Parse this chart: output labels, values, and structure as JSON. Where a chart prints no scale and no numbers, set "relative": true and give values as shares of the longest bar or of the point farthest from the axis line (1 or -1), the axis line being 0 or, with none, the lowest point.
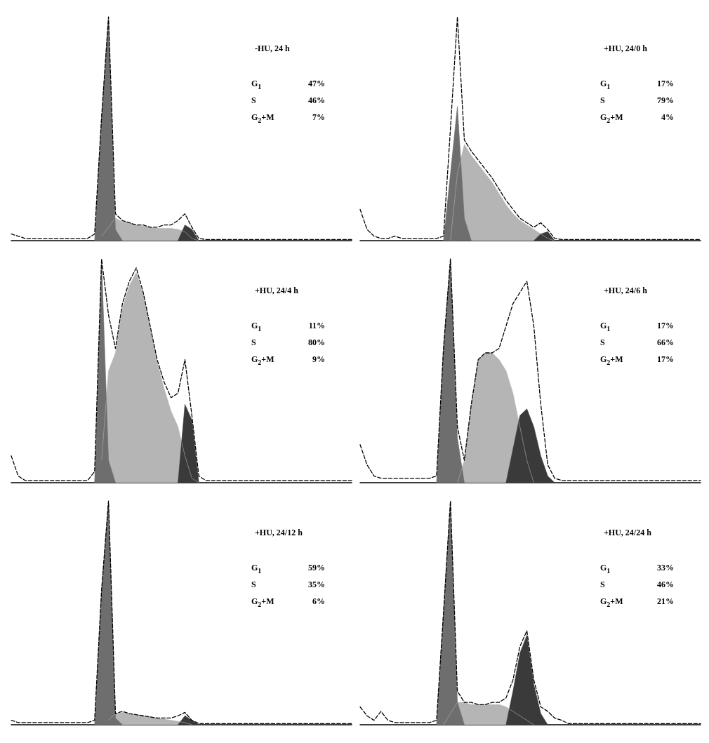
{
  "chart_data": [
    {
      "type": "area",
      "relative": true,
      "marker": "none",
      "line_style": "dashed",
      "title": "-HU, 24 h",
      "annotations": [
        "G$_{1}$",
        "47%",
        "S",
        "46%",
        "G$_{2}$+M",
        "7%"
      ],
      "categories": [
        null,
        null,
        null,
        null,
        null,
        null,
        null,
        null,
        null,
        null,
        null,
        null,
        null,
        null,
        null,
        null,
        null,
        null,
        null,
        null,
        null,
        null,
        null,
        null,
        null,
        null,
        null,
        null,
        null,
        null,
        null,
        null,
        null,
        null,
        null,
        null,
        null,
        null,
        null,
        null,
        null,
        null,
        null,
        null,
        null,
        null,
        null,
        null,
        null,
        null
      ],
      "series": [
        {
          "type": "area",
          "color": "#b5b5b5",
          "values": [
            null,
            null,
            null,
            null,
            null,
            null,
            null,
            null,
            null,
            null,
            null,
            null,
            null,
            0.02,
            0.06,
            0.1,
            0.085,
            0.08,
            0.07,
            0.065,
            0.06,
            0.055,
            0.055,
            0.055,
            0.05,
            0.04,
            0.01,
            0,
            null,
            null,
            null,
            null,
            null,
            null,
            null,
            null,
            null,
            null,
            null,
            null,
            null,
            null,
            null,
            null,
            null,
            null,
            null,
            null,
            null,
            null
          ]
        },
        {
          "type": "area",
          "color": "#6e6e6e",
          "values": [
            null,
            null,
            null,
            null,
            null,
            null,
            null,
            null,
            null,
            null,
            null,
            null,
            0,
            0.55,
            1.0,
            0.05,
            0,
            null,
            null,
            null,
            null,
            null,
            null,
            null,
            null,
            null,
            null,
            null,
            null,
            null,
            null,
            null,
            null,
            null,
            null,
            null,
            null,
            null,
            null,
            null,
            null,
            null,
            null,
            null,
            null,
            null,
            null,
            null,
            null,
            null
          ]
        },
        {
          "type": "area",
          "color": "#3a3a3a",
          "values": [
            null,
            null,
            null,
            null,
            null,
            null,
            null,
            null,
            null,
            null,
            null,
            null,
            null,
            null,
            null,
            null,
            null,
            null,
            null,
            null,
            null,
            null,
            null,
            null,
            0,
            0.07,
            0.05,
            0,
            null,
            null,
            null,
            null,
            null,
            null,
            null,
            null,
            null,
            null,
            null,
            null,
            null,
            null,
            null,
            null,
            null,
            null,
            null,
            null,
            null,
            null
          ]
        },
        {
          "type": "line",
          "color": "#000000",
          "values": [
            0.03,
            0.02,
            0.01,
            0.01,
            0.01,
            0.01,
            0.01,
            0.01,
            0.01,
            0.01,
            0.01,
            0.01,
            0.03,
            0.55,
            1.0,
            0.12,
            0.09,
            0.08,
            0.07,
            0.07,
            0.06,
            0.06,
            0.07,
            0.07,
            0.09,
            0.12,
            0.06,
            0.01,
            0.005,
            0.005,
            0.005,
            0.005,
            0.005,
            0.005,
            0.005,
            0.005,
            0.005,
            0.005,
            0.005,
            0.005,
            0.005,
            0.005,
            0.005,
            0.005,
            0.005,
            0.005,
            0.005,
            0.005,
            0.005,
            0.005
          ]
        }
      ]
    },
    {
      "type": "area",
      "relative": true,
      "marker": "none",
      "line_style": "dashed",
      "title": "+HU, 24/0 h",
      "annotations": [
        "G$_{1}$",
        "17%",
        "S",
        "79%",
        "G$_{2}$+M",
        "4%"
      ],
      "categories": [
        null,
        null,
        null,
        null,
        null,
        null,
        null,
        null,
        null,
        null,
        null,
        null,
        null,
        null,
        null,
        null,
        null,
        null,
        null,
        null,
        null,
        null,
        null,
        null,
        null,
        null,
        null,
        null,
        null,
        null,
        null,
        null,
        null,
        null,
        null,
        null,
        null,
        null,
        null,
        null,
        null,
        null,
        null,
        null,
        null,
        null,
        null,
        null,
        null,
        null
      ],
      "series": [
        {
          "type": "area",
          "color": "#b5b5b5",
          "values": [
            null,
            null,
            null,
            null,
            null,
            null,
            null,
            null,
            null,
            null,
            null,
            null,
            null,
            0,
            0.3,
            0.43,
            0.38,
            0.34,
            0.3,
            0.26,
            0.21,
            0.16,
            0.12,
            0.09,
            0.07,
            0.05,
            0.03,
            0.01,
            0,
            null,
            null,
            null,
            null,
            null,
            null,
            null,
            null,
            null,
            null,
            null,
            null,
            null,
            null,
            null,
            null,
            null,
            null,
            null,
            null,
            null
          ]
        },
        {
          "type": "area",
          "color": "#6e6e6e",
          "values": [
            null,
            null,
            null,
            null,
            null,
            null,
            null,
            null,
            null,
            null,
            null,
            null,
            0,
            0.3,
            0.6,
            0.1,
            0,
            null,
            null,
            null,
            null,
            null,
            null,
            null,
            null,
            null,
            null,
            null,
            null,
            null,
            null,
            null,
            null,
            null,
            null,
            null,
            null,
            null,
            null,
            null,
            null,
            null,
            null,
            null,
            null,
            null,
            null,
            null,
            null,
            null
          ]
        },
        {
          "type": "area",
          "color": "#3a3a3a",
          "values": [
            null,
            null,
            null,
            null,
            null,
            null,
            null,
            null,
            null,
            null,
            null,
            null,
            null,
            null,
            null,
            null,
            null,
            null,
            null,
            null,
            null,
            null,
            null,
            null,
            null,
            0,
            0.03,
            0.04,
            0,
            null,
            null,
            null,
            null,
            null,
            null,
            null,
            null,
            null,
            null,
            null,
            null,
            null,
            null,
            null,
            null,
            null,
            null,
            null,
            null,
            null
          ]
        },
        {
          "type": "line",
          "color": "#000000",
          "values": [
            0.14,
            0.05,
            0.02,
            0.01,
            0.01,
            0.02,
            0.01,
            0.01,
            0.01,
            0.01,
            0.01,
            0.01,
            0.02,
            0.5,
            1.0,
            0.45,
            0.4,
            0.36,
            0.32,
            0.28,
            0.23,
            0.18,
            0.14,
            0.1,
            0.08,
            0.06,
            0.08,
            0.05,
            0.01,
            0.005,
            0.005,
            0.005,
            0.005,
            0.005,
            0.005,
            0.005,
            0.005,
            0.005,
            0.005,
            0.005,
            0.005,
            0.005,
            0.005,
            0.005,
            0.005,
            0.005,
            0.005,
            0.005,
            0.005,
            0.005
          ]
        }
      ]
    },
    {
      "type": "area",
      "relative": true,
      "marker": "none",
      "line_style": "dashed",
      "title": "+HU, 24/4 h",
      "annotations": [
        "G$_{1}$",
        "11%",
        "S",
        "80%",
        "G$_{2}$+M",
        "9%"
      ],
      "categories": [
        null,
        null,
        null,
        null,
        null,
        null,
        null,
        null,
        null,
        null,
        null,
        null,
        null,
        null,
        null,
        null,
        null,
        null,
        null,
        null,
        null,
        null,
        null,
        null,
        null,
        null,
        null,
        null,
        null,
        null,
        null,
        null,
        null,
        null,
        null,
        null,
        null,
        null,
        null,
        null,
        null,
        null,
        null,
        null,
        null,
        null,
        null,
        null,
        null,
        null
      ],
      "series": [
        {
          "type": "area",
          "color": "#b5b5b5",
          "values": [
            null,
            null,
            null,
            null,
            null,
            null,
            null,
            null,
            null,
            null,
            null,
            null,
            null,
            0.1,
            0.5,
            0.58,
            0.78,
            0.88,
            0.94,
            0.84,
            0.69,
            0.54,
            0.42,
            0.32,
            0.25,
            0.12,
            0.02,
            0,
            null,
            null,
            null,
            null,
            null,
            null,
            null,
            null,
            null,
            null,
            null,
            null,
            null,
            null,
            null,
            null,
            null,
            null,
            null,
            null,
            null,
            null
          ]
        },
        {
          "type": "area",
          "color": "#6e6e6e",
          "values": [
            null,
            null,
            null,
            null,
            null,
            null,
            null,
            null,
            null,
            null,
            null,
            null,
            0,
            1.0,
            0.1,
            0,
            null,
            null,
            null,
            null,
            null,
            null,
            null,
            null,
            null,
            null,
            null,
            null,
            null,
            null,
            null,
            null,
            null,
            null,
            null,
            null,
            null,
            null,
            null,
            null,
            null,
            null,
            null,
            null,
            null,
            null,
            null,
            null,
            null,
            null
          ]
        },
        {
          "type": "area",
          "color": "#3a3a3a",
          "values": [
            null,
            null,
            null,
            null,
            null,
            null,
            null,
            null,
            null,
            null,
            null,
            null,
            null,
            null,
            null,
            null,
            null,
            null,
            null,
            null,
            null,
            null,
            null,
            null,
            0,
            0.35,
            0.28,
            0,
            null,
            null,
            null,
            null,
            null,
            null,
            null,
            null,
            null,
            null,
            null,
            null,
            null,
            null,
            null,
            null,
            null,
            null,
            null,
            null,
            null,
            null
          ]
        },
        {
          "type": "line",
          "color": "#000000",
          "values": [
            0.12,
            0.03,
            0.01,
            0.01,
            0.01,
            0.01,
            0.01,
            0.01,
            0.01,
            0.01,
            0.01,
            0.01,
            0.05,
            1.0,
            0.75,
            0.6,
            0.8,
            0.9,
            0.96,
            0.85,
            0.7,
            0.55,
            0.45,
            0.38,
            0.4,
            0.55,
            0.3,
            0.03,
            0.01,
            0.01,
            0.01,
            0.01,
            0.01,
            0.01,
            0.01,
            0.01,
            0.01,
            0.01,
            0.01,
            0.01,
            0.01,
            0.01,
            0.01,
            0.01,
            0.01,
            0.01,
            0.01,
            0.01,
            0.01,
            0.01
          ]
        }
      ]
    },
    {
      "type": "area",
      "relative": true,
      "marker": "none",
      "line_style": "dashed",
      "title": "+HU, 24/6 h",
      "annotations": [
        "G$_{1}$",
        "17%",
        "S",
        "66%",
        "G$_{2}$+M",
        "17%"
      ],
      "categories": [
        null,
        null,
        null,
        null,
        null,
        null,
        null,
        null,
        null,
        null,
        null,
        null,
        null,
        null,
        null,
        null,
        null,
        null,
        null,
        null,
        null,
        null,
        null,
        null,
        null,
        null,
        null,
        null,
        null,
        null,
        null,
        null,
        null,
        null,
        null,
        null,
        null,
        null,
        null,
        null,
        null,
        null,
        null,
        null,
        null,
        null,
        null,
        null,
        null,
        null
      ],
      "series": [
        {
          "type": "area",
          "color": "#b5b5b5",
          "values": [
            null,
            null,
            null,
            null,
            null,
            null,
            null,
            null,
            null,
            null,
            null,
            null,
            null,
            null,
            0,
            0.1,
            0.35,
            0.55,
            0.58,
            0.58,
            0.55,
            0.5,
            0.4,
            0.25,
            0.1,
            0,
            null,
            null,
            null,
            null,
            null,
            null,
            null,
            null,
            null,
            null,
            null,
            null,
            null,
            null,
            null,
            null,
            null,
            null,
            null,
            null,
            null,
            null,
            null,
            null
          ]
        },
        {
          "type": "area",
          "color": "#6e6e6e",
          "values": [
            null,
            null,
            null,
            null,
            null,
            null,
            null,
            null,
            null,
            null,
            null,
            0,
            0.6,
            1.0,
            0.2,
            0,
            null,
            null,
            null,
            null,
            null,
            null,
            null,
            null,
            null,
            null,
            null,
            null,
            null,
            null,
            null,
            null,
            null,
            null,
            null,
            null,
            null,
            null,
            null,
            null,
            null,
            null,
            null,
            null,
            null,
            null,
            null,
            null,
            null,
            null
          ]
        },
        {
          "type": "area",
          "color": "#3a3a3a",
          "values": [
            null,
            null,
            null,
            null,
            null,
            null,
            null,
            null,
            null,
            null,
            null,
            null,
            null,
            null,
            null,
            null,
            null,
            null,
            null,
            null,
            null,
            0,
            0.15,
            0.3,
            0.33,
            0.25,
            0.12,
            0.03,
            0,
            null,
            null,
            null,
            null,
            null,
            null,
            null,
            null,
            null,
            null,
            null,
            null,
            null,
            null,
            null,
            null,
            null,
            null,
            null,
            null,
            null
          ]
        },
        {
          "type": "line",
          "color": "#000000",
          "values": [
            0.17,
            0.08,
            0.03,
            0.02,
            0.02,
            0.02,
            0.02,
            0.02,
            0.02,
            0.02,
            0.02,
            0.03,
            0.6,
            1.0,
            0.25,
            0.1,
            0.35,
            0.55,
            0.58,
            0.58,
            0.6,
            0.7,
            0.8,
            0.85,
            0.9,
            0.7,
            0.35,
            0.08,
            0.02,
            0.01,
            0.01,
            0.01,
            0.01,
            0.01,
            0.01,
            0.01,
            0.01,
            0.01,
            0.01,
            0.01,
            0.01,
            0.01,
            0.01,
            0.01,
            0.01,
            0.01,
            0.01,
            0.01,
            0.01,
            0.01
          ]
        }
      ]
    },
    {
      "type": "area",
      "relative": true,
      "marker": "none",
      "line_style": "dashed",
      "title": "+HU, 24/12 h",
      "annotations": [
        "G$_{1}$",
        "59%",
        "S",
        "35%",
        "G$_{2}$+M",
        "6%"
      ],
      "categories": [
        null,
        null,
        null,
        null,
        null,
        null,
        null,
        null,
        null,
        null,
        null,
        null,
        null,
        null,
        null,
        null,
        null,
        null,
        null,
        null,
        null,
        null,
        null,
        null,
        null,
        null,
        null,
        null,
        null,
        null,
        null,
        null,
        null,
        null,
        null,
        null,
        null,
        null,
        null,
        null,
        null,
        null,
        null,
        null,
        null,
        null,
        null,
        null,
        null,
        null
      ],
      "series": [
        {
          "type": "area",
          "color": "#b5b5b5",
          "values": [
            null,
            null,
            null,
            null,
            null,
            null,
            null,
            null,
            null,
            null,
            null,
            null,
            null,
            null,
            0.02,
            0.05,
            0.055,
            0.05,
            0.045,
            0.04,
            0.035,
            0.03,
            0.025,
            0.02,
            0.015,
            0.01,
            0,
            null,
            null,
            null,
            null,
            null,
            null,
            null,
            null,
            null,
            null,
            null,
            null,
            null,
            null,
            null,
            null,
            null,
            null,
            null,
            null,
            null,
            null,
            null
          ]
        },
        {
          "type": "area",
          "color": "#6e6e6e",
          "values": [
            null,
            null,
            null,
            null,
            null,
            null,
            null,
            null,
            null,
            null,
            null,
            null,
            0,
            0.6,
            1.0,
            0.03,
            0,
            null,
            null,
            null,
            null,
            null,
            null,
            null,
            null,
            null,
            null,
            null,
            null,
            null,
            null,
            null,
            null,
            null,
            null,
            null,
            null,
            null,
            null,
            null,
            null,
            null,
            null,
            null,
            null,
            null,
            null,
            null,
            null,
            null
          ]
        },
        {
          "type": "area",
          "color": "#3a3a3a",
          "values": [
            null,
            null,
            null,
            null,
            null,
            null,
            null,
            null,
            null,
            null,
            null,
            null,
            null,
            null,
            null,
            null,
            null,
            null,
            null,
            null,
            null,
            null,
            null,
            null,
            0,
            0.04,
            0.02,
            0,
            null,
            null,
            null,
            null,
            null,
            null,
            null,
            null,
            null,
            null,
            null,
            null,
            null,
            null,
            null,
            null,
            null,
            null,
            null,
            null,
            null,
            null
          ]
        },
        {
          "type": "line",
          "color": "#000000",
          "values": [
            0.02,
            0.01,
            0.01,
            0.01,
            0.01,
            0.01,
            0.01,
            0.01,
            0.01,
            0.01,
            0.01,
            0.01,
            0.02,
            0.6,
            1.0,
            0.05,
            0.06,
            0.05,
            0.045,
            0.04,
            0.035,
            0.03,
            0.03,
            0.03,
            0.04,
            0.055,
            0.02,
            0.005,
            0.005,
            0.005,
            0.005,
            0.005,
            0.005,
            0.005,
            0.005,
            0.005,
            0.005,
            0.005,
            0.005,
            0.005,
            0.005,
            0.005,
            0.005,
            0.005,
            0.005,
            0.005,
            0.005,
            0.005,
            0.005,
            0.005
          ]
        }
      ]
    },
    {
      "type": "area",
      "relative": true,
      "marker": "none",
      "line_style": "dashed",
      "title": "+HU, 24/24 h",
      "annotations": [
        "G$_{1}$",
        "33%",
        "S",
        "46%",
        "G$_{2}$+M",
        "21%"
      ],
      "categories": [
        null,
        null,
        null,
        null,
        null,
        null,
        null,
        null,
        null,
        null,
        null,
        null,
        null,
        null,
        null,
        null,
        null,
        null,
        null,
        null,
        null,
        null,
        null,
        null,
        null,
        null,
        null,
        null,
        null,
        null,
        null,
        null,
        null,
        null,
        null,
        null,
        null,
        null,
        null,
        null,
        null,
        null,
        null,
        null,
        null,
        null,
        null,
        null,
        null,
        null
      ],
      "series": [
        {
          "type": "area",
          "color": "#b5b5b5",
          "values": [
            null,
            null,
            null,
            null,
            null,
            null,
            null,
            null,
            null,
            null,
            null,
            null,
            0,
            0.05,
            0.1,
            0.1,
            0.09,
            0.09,
            0.09,
            0.09,
            0.09,
            0.08,
            0.06,
            0.04,
            0.02,
            0,
            null,
            null,
            null,
            null,
            null,
            null,
            null,
            null,
            null,
            null,
            null,
            null,
            null,
            null,
            null,
            null,
            null,
            null,
            null,
            null,
            null,
            null,
            null,
            null
          ]
        },
        {
          "type": "area",
          "color": "#6e6e6e",
          "values": [
            null,
            null,
            null,
            null,
            null,
            null,
            null,
            null,
            null,
            null,
            null,
            0,
            0.5,
            1.0,
            0.1,
            0,
            null,
            null,
            null,
            null,
            null,
            null,
            null,
            null,
            null,
            null,
            null,
            null,
            null,
            null,
            null,
            null,
            null,
            null,
            null,
            null,
            null,
            null,
            null,
            null,
            null,
            null,
            null,
            null,
            null,
            null,
            null,
            null,
            null,
            null
          ]
        },
        {
          "type": "area",
          "color": "#3a3a3a",
          "values": [
            null,
            null,
            null,
            null,
            null,
            null,
            null,
            null,
            null,
            null,
            null,
            null,
            null,
            null,
            null,
            null,
            null,
            null,
            null,
            null,
            null,
            0,
            0.15,
            0.32,
            0.4,
            0.18,
            0.05,
            0,
            null,
            null,
            null,
            null,
            null,
            null,
            null,
            null,
            null,
            null,
            null,
            null,
            null,
            null,
            null,
            null,
            null,
            null,
            null,
            null,
            null,
            null
          ]
        },
        {
          "type": "line",
          "color": "#000000",
          "values": [
            0.08,
            0.04,
            0.02,
            0.06,
            0.02,
            0.01,
            0.01,
            0.01,
            0.01,
            0.01,
            0.01,
            0.02,
            0.5,
            1.0,
            0.15,
            0.1,
            0.1,
            0.09,
            0.09,
            0.1,
            0.1,
            0.12,
            0.2,
            0.35,
            0.42,
            0.2,
            0.08,
            0.06,
            0.03,
            0.02,
            0.005,
            0.005,
            0.005,
            0.005,
            0.005,
            0.005,
            0.005,
            0.005,
            0.005,
            0.005,
            0.005,
            0.005,
            0.005,
            0.005,
            0.005,
            0.005,
            0.005,
            0.005,
            0.005,
            0.005
          ]
        }
      ]
    }
  ]
}
